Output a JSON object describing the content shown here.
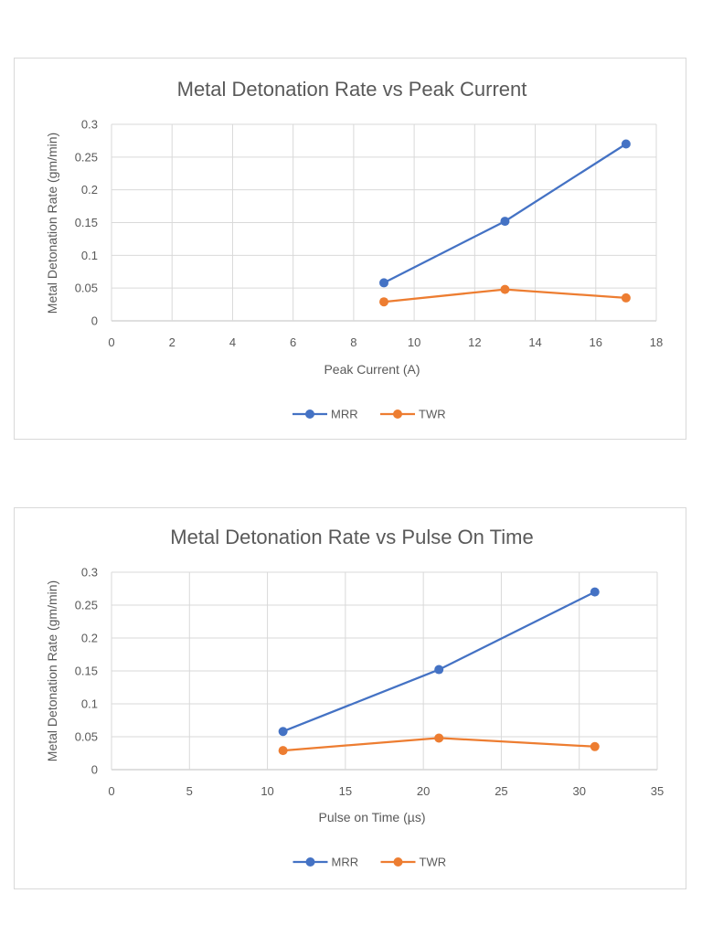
{
  "chart_data": [
    {
      "type": "line",
      "title": "Metal Detonation Rate vs Peak Current",
      "xlabel": "Peak Current (A)",
      "ylabel": "Metal Detonation Rate (gm/min)",
      "xlim": [
        0,
        18
      ],
      "ylim": [
        0,
        0.3
      ],
      "xticks": [
        "0",
        "2",
        "4",
        "6",
        "8",
        "10",
        "12",
        "14",
        "16",
        "18"
      ],
      "yticks": [
        "0",
        "0.05",
        "0.1",
        "0.15",
        "0.2",
        "0.25",
        "0.3"
      ],
      "grid": true,
      "legend_position": "bottom",
      "x": [
        9,
        13,
        17
      ],
      "series": [
        {
          "name": "MRR",
          "color": "#4472c4",
          "values": [
            0.058,
            0.152,
            0.27
          ]
        },
        {
          "name": "TWR",
          "color": "#ed7d31",
          "values": [
            0.029,
            0.048,
            0.035
          ]
        }
      ]
    },
    {
      "type": "line",
      "title": "Metal Detonation Rate vs Pulse On Time",
      "xlabel": "Pulse on Time (µs)",
      "ylabel": "Metal Detonation Rate (gm/min)",
      "xlim": [
        0,
        35
      ],
      "ylim": [
        0,
        0.3
      ],
      "xticks": [
        "0",
        "5",
        "10",
        "15",
        "20",
        "25",
        "30",
        "35"
      ],
      "yticks": [
        "0",
        "0.05",
        "0.1",
        "0.15",
        "0.2",
        "0.25",
        "0.3"
      ],
      "grid": true,
      "legend_position": "bottom",
      "x": [
        11,
        21,
        31
      ],
      "series": [
        {
          "name": "MRR",
          "color": "#4472c4",
          "values": [
            0.058,
            0.152,
            0.27
          ]
        },
        {
          "name": "TWR",
          "color": "#ed7d31",
          "values": [
            0.029,
            0.048,
            0.035
          ]
        }
      ]
    }
  ]
}
